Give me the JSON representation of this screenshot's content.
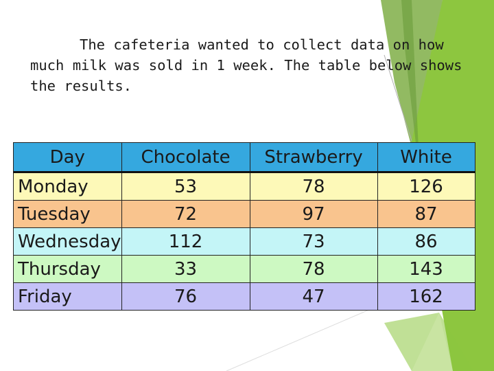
{
  "intro": {
    "text": "The cafeteria wanted to collect data on how much milk was sold in 1 week.  The table below shows the results."
  },
  "table": {
    "headers": [
      "Day",
      "Chocolate",
      "Strawberry",
      "White"
    ],
    "rows": [
      {
        "day": "Monday",
        "chocolate": "53",
        "strawberry": "78",
        "white": "126",
        "color": "#fdf9b8"
      },
      {
        "day": "Tuesday",
        "chocolate": "72",
        "strawberry": "97",
        "white": "87",
        "color": "#f9c48e"
      },
      {
        "day": "Wednesday",
        "chocolate": "112",
        "strawberry": "73",
        "white": "86",
        "color": "#c4f5f7"
      },
      {
        "day": "Thursday",
        "chocolate": "33",
        "strawberry": "78",
        "white": "143",
        "color": "#cdf9c2"
      },
      {
        "day": "Friday",
        "chocolate": "76",
        "strawberry": "47",
        "white": "162",
        "color": "#c4c1f7"
      }
    ],
    "header_color": "#35a8df"
  },
  "theme": {
    "accent_green": "#8dc63f",
    "accent_dark_green": "#5e9e2e"
  }
}
